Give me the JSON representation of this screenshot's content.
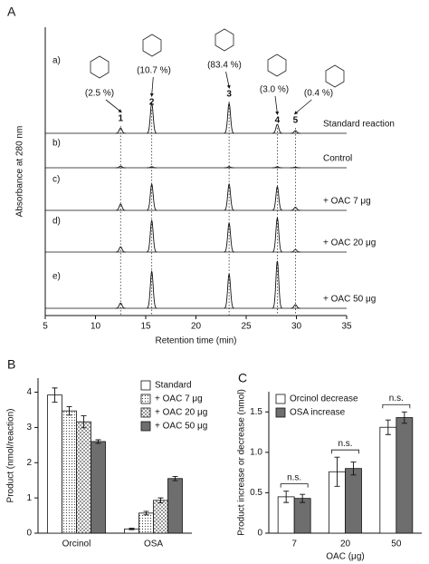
{
  "chart_data": [
    {
      "type": "chromatogram",
      "panel": "A",
      "ylabel": "Absorbance at 280 nm",
      "xlabel": "Retention time (min)",
      "xlim": [
        5,
        35
      ],
      "xticks": [
        5,
        10,
        15,
        20,
        25,
        30,
        35
      ],
      "peaks": {
        "x": [
          12.5,
          15.6,
          23.3,
          28.1,
          29.9
        ],
        "labels": [
          "1",
          "2",
          "3",
          "4",
          "5"
        ],
        "percent": [
          "(2.5 %)",
          "(10.7 %)",
          "(83.4 %)",
          "(3.0 %)",
          "(0.4 %)"
        ]
      },
      "series": [
        {
          "name": "a)",
          "label": "Standard reaction",
          "values": [
            0.1,
            0.57,
            0.57,
            0.17,
            0.05
          ]
        },
        {
          "name": "b)",
          "label": "Control",
          "values": [
            0.03,
            0.02,
            0.02,
            0.02,
            0.01
          ]
        },
        {
          "name": "c)",
          "label": "+ OAC 7 μg",
          "values": [
            0.12,
            0.5,
            0.5,
            0.45,
            0.06
          ]
        },
        {
          "name": "d)",
          "label": "+ OAC 20 μg",
          "values": [
            0.1,
            0.6,
            0.55,
            0.65,
            0.05
          ]
        },
        {
          "name": "e)",
          "label": "+ OAC 50 μg",
          "values": [
            0.1,
            0.7,
            0.65,
            0.9,
            0.07
          ]
        }
      ]
    },
    {
      "type": "bar",
      "panel": "B",
      "ylabel": "Product (nmol/reaction)",
      "categories": [
        "Orcinol",
        "OSA"
      ],
      "ylim": [
        0,
        4.4
      ],
      "yticks": [
        0,
        1,
        2,
        3,
        4
      ],
      "legend": "upper right",
      "series": [
        {
          "name": "Standard",
          "color": "#ffffff",
          "hatch": "none",
          "values": [
            3.92,
            0.12
          ],
          "errors": [
            0.2,
            0.02
          ]
        },
        {
          "name": "+ OAC 7 μg",
          "color": "#ffffff",
          "hatch": "dots",
          "values": [
            3.47,
            0.57
          ],
          "errors": [
            0.12,
            0.05
          ]
        },
        {
          "name": "+ OAC 20 μg",
          "color": "#ffffff",
          "hatch": "checker",
          "values": [
            3.16,
            0.93
          ],
          "errors": [
            0.17,
            0.07
          ]
        },
        {
          "name": "+ OAC 50 μg",
          "color": "#6e6e6e",
          "hatch": "none",
          "values": [
            2.6,
            1.55
          ],
          "errors": [
            0.05,
            0.06
          ]
        }
      ]
    },
    {
      "type": "bar",
      "panel": "C",
      "ylabel": "Product  increase or decrease (nmol)",
      "xlabel": "OAC (μg)",
      "categories": [
        "7",
        "20",
        "50"
      ],
      "ylim": [
        0,
        1.75
      ],
      "yticks": [
        0,
        0.5,
        {
          "value": 1,
          "label": "1.0"
        },
        1.5
      ],
      "legend": "upper left",
      "annotations": [
        "n.s.",
        "n.s.",
        "n.s."
      ],
      "series": [
        {
          "name": "Orcinol decrease",
          "color": "#ffffff",
          "hatch": "none",
          "values": [
            0.45,
            0.76,
            1.31
          ],
          "errors": [
            0.07,
            0.18,
            0.09
          ]
        },
        {
          "name": "OSA increase",
          "color": "#6e6e6e",
          "hatch": "none",
          "values": [
            0.43,
            0.8,
            1.43
          ],
          "errors": [
            0.05,
            0.08,
            0.07
          ]
        }
      ]
    }
  ]
}
